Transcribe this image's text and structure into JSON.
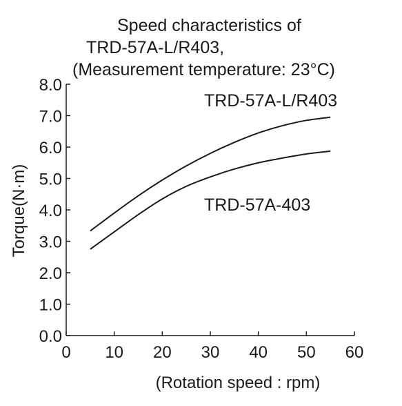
{
  "chart_data": {
    "type": "line",
    "title_lines": [
      "Speed characteristics of",
      "TRD-57A-L/R403,",
      "(Measurement temperature: 23°C)"
    ],
    "xlabel": "(Rotation speed : rpm)",
    "ylabel": "Torque(N·m)",
    "xlim": [
      0,
      60
    ],
    "ylim": [
      0,
      8
    ],
    "x_ticks": [
      0,
      10,
      20,
      30,
      40,
      50,
      60
    ],
    "x_tick_labels": [
      "0",
      "10",
      "20",
      "30",
      "40",
      "50",
      "60"
    ],
    "y_ticks": [
      0,
      1,
      2,
      3,
      4,
      5,
      6,
      7,
      8
    ],
    "y_tick_labels": [
      "0.0",
      "1.0",
      "2.0",
      "3.0",
      "4.0",
      "5.0",
      "6.0",
      "7.0",
      "8.0"
    ],
    "grid": false,
    "series": [
      {
        "name": "TRD-57A-L/R403",
        "x": [
          5,
          10,
          15,
          20,
          25,
          30,
          35,
          40,
          45,
          50,
          55
        ],
        "y": [
          3.33,
          3.9,
          4.45,
          4.95,
          5.4,
          5.8,
          6.15,
          6.45,
          6.68,
          6.85,
          6.95
        ]
      },
      {
        "name": "TRD-57A-403",
        "x": [
          5,
          10,
          15,
          20,
          25,
          30,
          35,
          40,
          45,
          50,
          55
        ],
        "y": [
          2.75,
          3.3,
          3.85,
          4.35,
          4.75,
          5.05,
          5.3,
          5.5,
          5.65,
          5.78,
          5.87
        ]
      }
    ]
  }
}
